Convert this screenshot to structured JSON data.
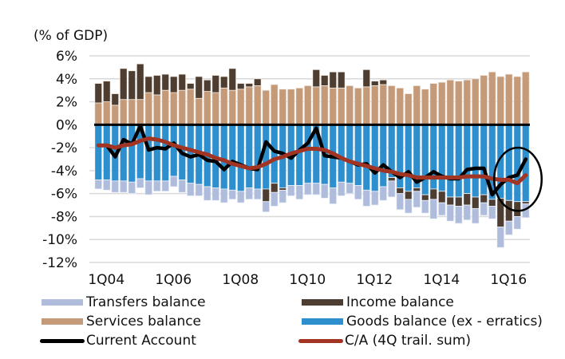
{
  "chart_data": {
    "type": "bar",
    "subtype": "stacked-bar-with-lines",
    "title": "",
    "unit_label": "(% of GDP)",
    "xlabel": "",
    "ylabel": "",
    "ylim": [
      -12,
      6
    ],
    "yticks": [
      6,
      4,
      2,
      0,
      -2,
      -4,
      -6,
      -8,
      -10,
      -12
    ],
    "ytick_labels": [
      "6%",
      "4%",
      "2%",
      "0%",
      "-2%",
      "-4%",
      "-6%",
      "-8%",
      "-10%",
      "-12%"
    ],
    "xtick_labels": [
      "1Q04",
      "1Q06",
      "1Q08",
      "1Q10",
      "1Q12",
      "1Q14",
      "1Q16"
    ],
    "xtick_indices": [
      0,
      8,
      16,
      24,
      32,
      40,
      48
    ],
    "grid": true,
    "legend_position": "bottom",
    "categories": [
      "1Q04",
      "2Q04",
      "3Q04",
      "4Q04",
      "1Q05",
      "2Q05",
      "3Q05",
      "4Q05",
      "1Q06",
      "2Q06",
      "3Q06",
      "4Q06",
      "1Q07",
      "2Q07",
      "3Q07",
      "4Q07",
      "1Q08",
      "2Q08",
      "3Q08",
      "4Q08",
      "1Q09",
      "2Q09",
      "3Q09",
      "4Q09",
      "1Q10",
      "2Q10",
      "3Q10",
      "4Q10",
      "1Q11",
      "2Q11",
      "3Q11",
      "4Q11",
      "1Q12",
      "2Q12",
      "3Q12",
      "4Q12",
      "1Q13",
      "2Q13",
      "3Q13",
      "4Q13",
      "1Q14",
      "2Q14",
      "3Q14",
      "4Q14",
      "1Q15",
      "2Q15",
      "3Q15",
      "4Q15",
      "1Q16",
      "2Q16",
      "3Q16",
      "4Q16"
    ],
    "series": [
      {
        "name": "Services balance",
        "kind": "bar",
        "color": "#c49a78",
        "values": [
          1.9,
          2.0,
          1.7,
          2.2,
          2.2,
          2.2,
          2.8,
          2.6,
          3.0,
          2.8,
          3.0,
          3.1,
          2.3,
          2.9,
          2.8,
          3.2,
          3.0,
          3.1,
          3.3,
          3.4,
          3.0,
          3.5,
          3.1,
          3.1,
          3.2,
          3.4,
          3.3,
          3.4,
          3.2,
          3.2,
          3.4,
          3.2,
          3.3,
          3.4,
          3.5,
          3.4,
          3.2,
          2.7,
          3.4,
          3.1,
          3.6,
          3.7,
          3.9,
          3.8,
          3.9,
          4.0,
          4.3,
          4.6,
          4.2,
          4.4,
          4.2,
          4.6
        ]
      },
      {
        "name": "Income balance",
        "kind": "bar",
        "color": "#4e3d31",
        "values": [
          1.7,
          1.8,
          1.0,
          2.7,
          2.5,
          3.1,
          1.4,
          1.7,
          1.4,
          1.4,
          1.4,
          0.5,
          1.9,
          1.0,
          1.5,
          1.0,
          1.9,
          0.5,
          0.3,
          0.6,
          0.0,
          0.0,
          0.0,
          0.0,
          0.0,
          0.0,
          1.5,
          0.9,
          1.4,
          1.4,
          0.0,
          0.0,
          1.5,
          0.4,
          0.4,
          0.0,
          0.0,
          0.0,
          0.0,
          0.0,
          0.0,
          0.0,
          0.0,
          0.0,
          0.0,
          0.0,
          0.0,
          0.0,
          0.0,
          0.0,
          0.0,
          0.0
        ]
      },
      {
        "name": "Goods balance (ex - erratics)",
        "kind": "bar",
        "color": "#2e8fce",
        "values": [
          -4.8,
          -4.8,
          -4.9,
          -4.9,
          -5.0,
          -4.7,
          -4.9,
          -4.9,
          -4.9,
          -4.5,
          -4.8,
          -5.1,
          -5.2,
          -5.4,
          -5.5,
          -5.6,
          -5.7,
          -5.8,
          -5.5,
          -5.6,
          -5.6,
          -5.1,
          -5.5,
          -5.3,
          -5.3,
          -5.1,
          -5.1,
          -5.2,
          -5.5,
          -5.0,
          -5.1,
          -5.3,
          -5.7,
          -5.8,
          -5.4,
          -4.6,
          -5.5,
          -5.8,
          -5.5,
          -6.1,
          -5.6,
          -5.8,
          -6.3,
          -6.3,
          -6.0,
          -6.3,
          -6.1,
          -6.5,
          -6.4,
          -6.6,
          -6.7,
          -6.7
        ]
      },
      {
        "name": "Income balance (negative)",
        "kind": "bar",
        "color": "#4e3d31",
        "legend": false,
        "values": [
          0,
          0,
          0,
          0,
          0,
          0,
          0,
          0,
          0,
          0,
          0,
          0,
          0,
          0,
          0,
          0,
          0,
          0,
          0,
          0,
          -1.1,
          -0.8,
          -0.2,
          0,
          0,
          0,
          0,
          0,
          0,
          0,
          0,
          0,
          0,
          0,
          0,
          -0.3,
          -0.5,
          -0.7,
          -0.3,
          -0.5,
          -0.9,
          -1.0,
          -0.7,
          -0.8,
          -1.0,
          -1.0,
          -0.7,
          -0.6,
          -2.5,
          -1.8,
          -1.3,
          -0.2
        ]
      },
      {
        "name": "Transfers balance",
        "kind": "bar",
        "color": "#b0bcdc",
        "values": [
          -0.8,
          -0.9,
          -1.0,
          -1.0,
          -1.0,
          -0.8,
          -1.2,
          -0.9,
          -0.9,
          -0.9,
          -1.1,
          -1.1,
          -1.0,
          -1.2,
          -1.1,
          -1.2,
          -0.8,
          -1.0,
          -1.0,
          -0.9,
          -0.9,
          -1.2,
          -1.1,
          -0.9,
          -1.2,
          -1.0,
          -1.0,
          -1.2,
          -1.4,
          -1.2,
          -0.9,
          -1.2,
          -1.4,
          -1.2,
          -1.2,
          -1.4,
          -1.4,
          -1.2,
          -1.4,
          -1.1,
          -1.7,
          -1.1,
          -1.4,
          -1.5,
          -1.3,
          -1.3,
          -1.1,
          -1.1,
          -1.8,
          -1.2,
          -1.1,
          -1.2
        ]
      },
      {
        "name": "Current Account",
        "kind": "line",
        "color": "#000000",
        "values": [
          -1.8,
          -1.8,
          -2.8,
          -1.3,
          -1.7,
          -0.1,
          -2.2,
          -2.0,
          -2.1,
          -1.6,
          -2.5,
          -2.8,
          -2.6,
          -3.1,
          -3.2,
          -3.9,
          -3.2,
          -3.5,
          -3.8,
          -3.9,
          -1.5,
          -2.3,
          -2.5,
          -2.9,
          -2.2,
          -1.6,
          -0.3,
          -2.7,
          -2.8,
          -2.9,
          -3.2,
          -3.5,
          -3.4,
          -4.2,
          -3.5,
          -4.1,
          -4.6,
          -4.1,
          -5.0,
          -4.6,
          -4.1,
          -4.5,
          -4.7,
          -4.7,
          -3.9,
          -3.8,
          -3.8,
          -6.1,
          -5.2,
          -4.6,
          -4.4,
          -3.0
        ]
      },
      {
        "name": "C/A (4Q trail. sum)",
        "kind": "line",
        "color": "#a23423",
        "values": [
          -1.8,
          -1.8,
          -2.0,
          -1.8,
          -1.7,
          -1.4,
          -1.2,
          -1.3,
          -1.5,
          -1.8,
          -2.0,
          -2.2,
          -2.4,
          -2.6,
          -2.9,
          -3.1,
          -3.4,
          -3.6,
          -3.8,
          -3.7,
          -3.4,
          -3.0,
          -2.8,
          -2.5,
          -2.3,
          -2.1,
          -2.1,
          -2.2,
          -2.5,
          -2.9,
          -3.2,
          -3.4,
          -3.6,
          -3.8,
          -4.0,
          -4.1,
          -4.3,
          -4.4,
          -4.6,
          -4.6,
          -4.6,
          -4.6,
          -4.6,
          -4.6,
          -4.5,
          -4.5,
          -4.5,
          -4.7,
          -4.8,
          -4.8,
          -5.1,
          -4.4
        ]
      }
    ],
    "annotations": [
      {
        "type": "ellipse",
        "description": "circle highlighting the last four quarters (2016)",
        "x_range": [
          "1Q16",
          "4Q16"
        ],
        "y_range": [
          -7.5,
          -2
        ]
      }
    ]
  },
  "legend": [
    {
      "label": "Transfers balance",
      "kind": "bar",
      "color": "#b0bcdc"
    },
    {
      "label": "Income balance",
      "kind": "bar",
      "color": "#4e3d31"
    },
    {
      "label": "Services balance",
      "kind": "bar",
      "color": "#c49a78"
    },
    {
      "label": "Goods balance (ex - erratics)",
      "kind": "bar",
      "color": "#2e8fce"
    },
    {
      "label": "Current Account",
      "kind": "line",
      "color": "#000000"
    },
    {
      "label": "C/A (4Q trail. sum)",
      "kind": "line",
      "color": "#a23423"
    }
  ]
}
